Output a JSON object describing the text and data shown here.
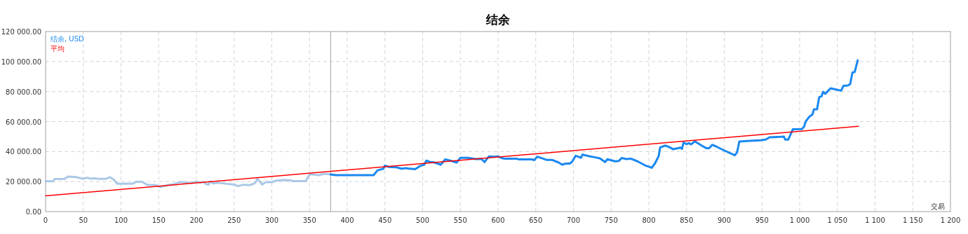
{
  "chart_data": {
    "type": "line",
    "title": "结余",
    "xlabel": "交易",
    "legend": "top left",
    "grid": true,
    "xlim": [
      0,
      1200
    ],
    "xticks": [
      0,
      50,
      100,
      150,
      200,
      250,
      300,
      350,
      400,
      450,
      500,
      550,
      600,
      650,
      700,
      750,
      800,
      850,
      900,
      950,
      {
        "value": 1000,
        "label": "1 000"
      },
      {
        "value": 1050,
        "label": "1 050"
      },
      {
        "value": 1100,
        "label": "1 100"
      },
      {
        "value": 1150,
        "label": "1 150"
      },
      {
        "value": 1200,
        "label": "1 200"
      }
    ],
    "ylim": [
      0,
      120000
    ],
    "yticks": [
      {
        "value": 0,
        "label": "0.00"
      },
      {
        "value": 20000,
        "label": "20 000.00"
      },
      {
        "value": 40000,
        "label": "40 000.00"
      },
      {
        "value": 60000,
        "label": "60 000.00"
      },
      {
        "value": 80000,
        "label": "80 000.00"
      },
      {
        "value": 100000,
        "label": "100 000.00"
      },
      {
        "value": 120000,
        "label": "120 000.00"
      }
    ],
    "ref_lines": [
      {
        "axis": "x",
        "value": 378,
        "color": "#a0a0a0"
      }
    ],
    "series": [
      {
        "color": "#aac8e6",
        "x": [
          0,
          10,
          12,
          25,
          30,
          40,
          50,
          55,
          60,
          65,
          70,
          80,
          85,
          90,
          95,
          115,
          120,
          128,
          135,
          145,
          152,
          158,
          162,
          170,
          178,
          185,
          195,
          200,
          205,
          210,
          212,
          216,
          218,
          222,
          230,
          240,
          250,
          255,
          262,
          270,
          275,
          278,
          281,
          285,
          287,
          292,
          300,
          305,
          310,
          315,
          325,
          327,
          345,
          350,
          355,
          362,
          370,
          378
        ],
        "values": [
          20200,
          20200,
          21700,
          21700,
          23300,
          23000,
          21900,
          22600,
          21900,
          22200,
          21800,
          21800,
          23000,
          21500,
          18600,
          18600,
          19800,
          19800,
          17800,
          17800,
          16400,
          17000,
          17800,
          18200,
          19700,
          19400,
          19200,
          20000,
          19300,
          19800,
          18500,
          17900,
          20200,
          18800,
          19200,
          18500,
          18000,
          17000,
          17900,
          17600,
          18300,
          19200,
          21800,
          19500,
          18000,
          19600,
          19600,
          20500,
          20800,
          21000,
          20900,
          20300,
          20300,
          24800,
          24700,
          24300,
          25200,
          24800
        ]
      },
      {
        "name": "结余, USD",
        "color": "#1a88f0",
        "x": [
          378,
          385,
          435,
          440,
          445,
          448,
          450,
          455,
          465,
          472,
          478,
          480,
          490,
          497,
          502,
          505,
          510,
          515,
          520,
          524,
          530,
          540,
          545,
          550,
          560,
          570,
          578,
          582,
          588,
          595,
          600,
          605,
          610,
          625,
          628,
          645,
          648,
          652,
          665,
          672,
          680,
          685,
          690,
          695,
          698,
          703,
          710,
          712,
          720,
          730,
          735,
          742,
          745,
          755,
          760,
          764,
          770,
          776,
          785,
          795,
          800,
          804,
          808,
          813,
          815,
          822,
          827,
          832,
          842,
          844,
          846,
          850,
          853,
          856,
          861,
          870,
          876,
          880,
          884,
          890,
          901,
          914,
          917,
          920,
          930,
          948,
          955,
          960,
          975,
          979,
          981,
          985,
          991,
          1003,
          1006,
          1008,
          1013,
          1017,
          1019,
          1023,
          1026,
          1029,
          1031,
          1034,
          1041,
          1047,
          1055,
          1058,
          1064,
          1067,
          1070,
          1073,
          1077
        ],
        "values": [
          24800,
          24300,
          24300,
          27400,
          28200,
          28500,
          30600,
          29800,
          29500,
          28600,
          29000,
          28700,
          28200,
          30500,
          31200,
          34000,
          33000,
          32800,
          32000,
          31300,
          34800,
          33500,
          32600,
          35800,
          35800,
          35000,
          35100,
          33000,
          36800,
          36500,
          36800,
          35600,
          35200,
          35200,
          34800,
          34800,
          34300,
          36600,
          34400,
          34400,
          32800,
          31300,
          32000,
          32000,
          33000,
          37200,
          35900,
          38000,
          37000,
          36000,
          35500,
          33000,
          34900,
          33500,
          33700,
          35700,
          35000,
          35300,
          33500,
          30800,
          29900,
          29200,
          32000,
          36900,
          42800,
          44000,
          43000,
          41600,
          42600,
          41800,
          46000,
          45000,
          45600,
          44800,
          46800,
          44000,
          42300,
          42300,
          44500,
          43200,
          40500,
          37500,
          39500,
          46700,
          47000,
          47500,
          48000,
          49500,
          49800,
          50000,
          48000,
          48000,
          54900,
          55000,
          56700,
          60000,
          63300,
          64800,
          68200,
          68200,
          76300,
          76800,
          79800,
          78500,
          82200,
          81500,
          80600,
          83800,
          84000,
          85000,
          92700,
          93000,
          100800
        ]
      },
      {
        "name": "平均",
        "color": "#ff0000",
        "x": [
          0,
          1078
        ],
        "values": [
          10500,
          56900
        ]
      }
    ]
  }
}
